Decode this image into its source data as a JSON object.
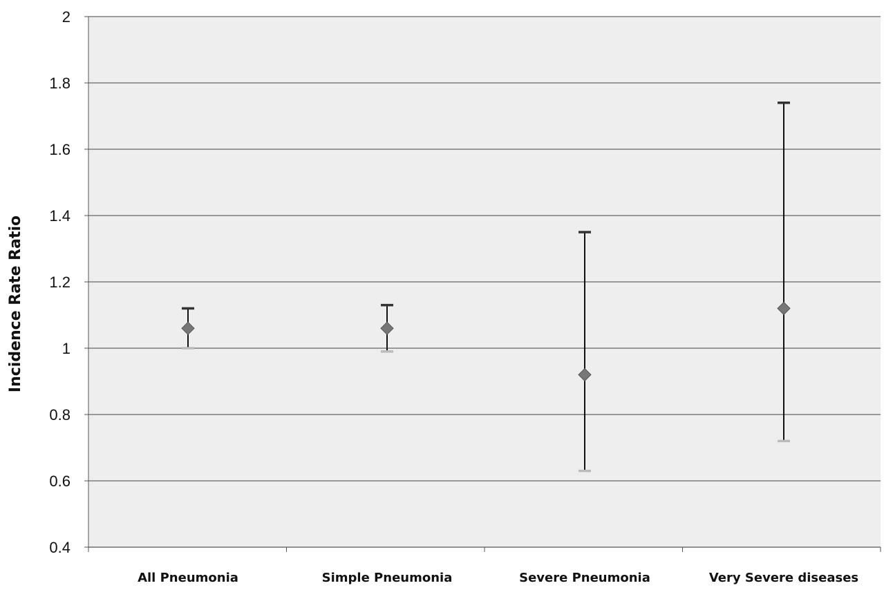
{
  "chart_data": {
    "type": "scatter",
    "title": "",
    "xlabel": "",
    "ylabel": "Incidence Rate Ratio",
    "ylim": [
      0.4,
      2
    ],
    "yticks": [
      "2",
      "1.8",
      "1.6",
      "1.4",
      "1.2",
      "1",
      "0.8",
      "0.6",
      "0.4"
    ],
    "grid": true,
    "categories": [
      "All Pneumonia",
      "Simple Pneumonia",
      "Severe Pneumonia",
      "Very Severe diseases"
    ],
    "series": [
      {
        "values": [
          1.06,
          1.06,
          0.92,
          1.12
        ],
        "lower": [
          1.0,
          0.99,
          0.63,
          0.72
        ],
        "upper": [
          1.12,
          1.13,
          1.35,
          1.74
        ]
      }
    ],
    "colors": {
      "marker": "#777777",
      "errorbar": "#111111",
      "upper_cap": "#333333",
      "lower_cap": "#bbbbbb",
      "grid": "#444444",
      "plot_bg": "#eeeeee"
    }
  }
}
